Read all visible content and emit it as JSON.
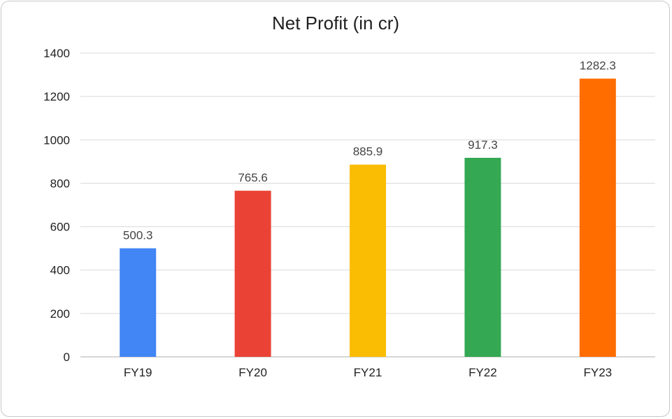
{
  "chart_data": {
    "type": "bar",
    "title": "Net Profit (in cr)",
    "xlabel": "",
    "ylabel": "",
    "categories": [
      "FY19",
      "FY20",
      "FY21",
      "FY22",
      "FY23"
    ],
    "values": [
      500.3,
      765.6,
      885.9,
      917.3,
      1282.3
    ],
    "data_labels": [
      "500.3",
      "765.6",
      "885.9",
      "917.3",
      "1282.3"
    ],
    "colors": [
      "#4285F4",
      "#EA4335",
      "#FBBC04",
      "#34A853",
      "#FF6D01"
    ],
    "ylim": [
      0,
      1400
    ],
    "yticks": [
      0,
      200,
      400,
      600,
      800,
      1000,
      1200,
      1400
    ],
    "grid": true,
    "legend": "none"
  }
}
